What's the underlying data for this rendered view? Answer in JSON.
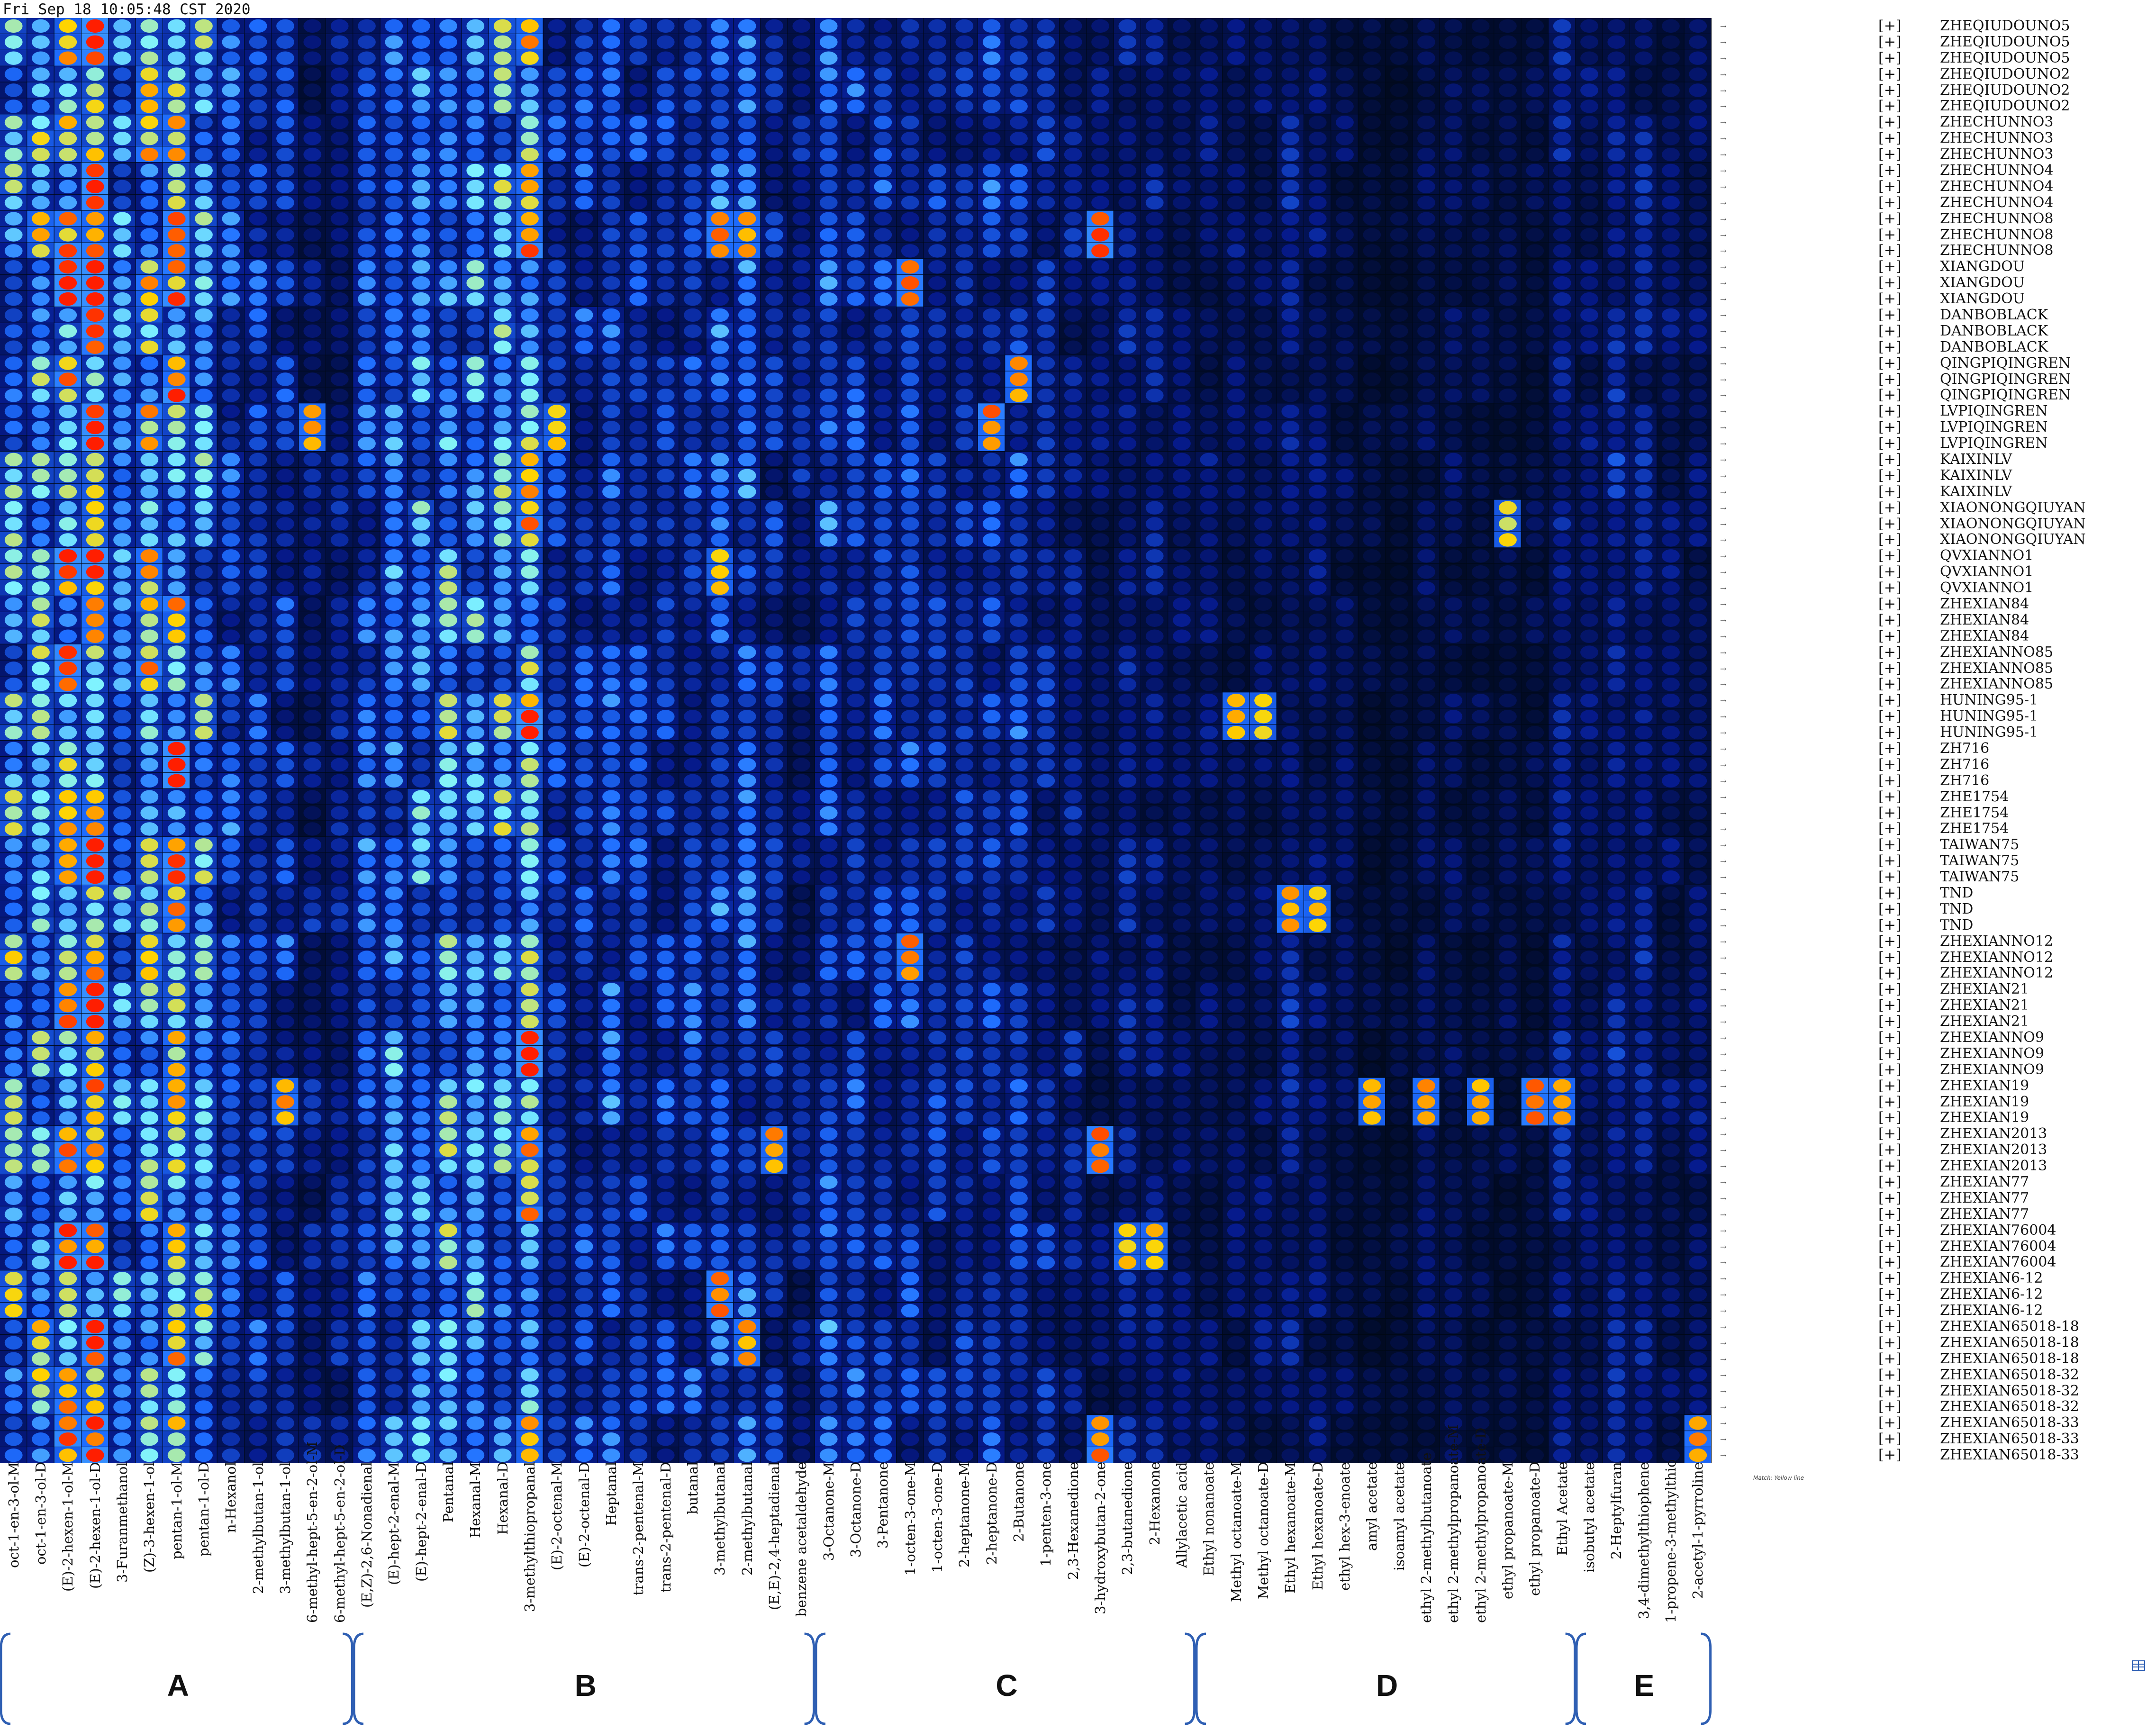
{
  "timestamp": "Fri Sep 18 10:05:48 CST 2020",
  "footnote": "Match: Yellow line",
  "colors": {
    "background": "#000814",
    "low": "#061a8c",
    "mid": "#1e6dff",
    "high": "#7ff3ff",
    "peak": "#ffd400",
    "max": "#ff1e00",
    "brace": "#2f5fb3"
  },
  "chart_data": {
    "type": "heatmap",
    "title": "",
    "xlabel": "",
    "ylabel": "",
    "x": [
      "oct-1-en-3-ol-M",
      "oct-1-en-3-ol-D",
      "(E)-2-hexen-1-ol-M",
      "(E)-2-hexen-1-ol-D",
      "3-Furanmethanol",
      "(Z)-3-hexen-1-ol",
      "pentan-1-ol-M",
      "pentan-1-ol-D",
      "n-Hexanol",
      "2-methylbutan-1-ol",
      "3-methylbutan-1-ol",
      "6-methyl-hept-5-en-2-ol-M",
      "6-methyl-hept-5-en-2-ol-D",
      "(E,Z)-2,6-Nonadienal",
      "(E)-hept-2-enal-M",
      "(E)-hept-2-enal-D",
      "Pentanal",
      "Hexanal-M",
      "Hexanal-D",
      "3-methylthiopropanal",
      "(E)-2-octenal-M",
      "(E)-2-octenal-D",
      "Heptanal",
      "trans-2-pentenal-M",
      "trans-2-pentenal-D",
      "butanal",
      "3-methylbutanal",
      "2-methylbutanal",
      "(E,E)-2,4-heptadienal",
      "benzene acetaldehyde",
      "3-Octanone-M",
      "3-Octanone-D",
      "3-Pentanone",
      "1-octen-3-one-M",
      "1-octen-3-one-D",
      "2-heptanone-M",
      "2-heptanone-D",
      "2-Butanone",
      "1-penten-3-one",
      "2,3-Hexanedione",
      "3-hydroxybutan-2-one",
      "2,3-butanedione",
      "2-Hexanone",
      "Allylacetic acid",
      "Ethyl nonanoate",
      "Methyl octanoate-M",
      "Methyl octanoate-D",
      "Ethyl hexanoate-M",
      "Ethyl hexanoate-D",
      "ethyl hex-3-enoate",
      "amyl acetate",
      "isoamyl acetate",
      "ethyl 2-methylbutanoate",
      "ethyl 2-methylpropanoate-M",
      "ethyl 2-methylpropanoate-D",
      "ethyl propanoate-M",
      "ethyl propanoate-D",
      "Ethyl Acetate",
      "isobutyl acetate",
      "2-Heptylfuran",
      "3,4-dimethylthiophene",
      "1-propene-3-methylthio",
      "2-acetyl-1-pyrroline"
    ],
    "sample_groups": [
      {
        "name": "ZHEQIUDOUNO5",
        "replicates": 3
      },
      {
        "name": "ZHEQIUDOUNO2",
        "replicates": 3
      },
      {
        "name": "ZHECHUNNO3",
        "replicates": 3
      },
      {
        "name": "ZHECHUNNO4",
        "replicates": 3
      },
      {
        "name": "ZHECHUNNO8",
        "replicates": 3
      },
      {
        "name": "XIANGDOU",
        "replicates": 3
      },
      {
        "name": "DANBOBLACK",
        "replicates": 3
      },
      {
        "name": "QINGPIQINGREN",
        "replicates": 3
      },
      {
        "name": "LVPIQINGREN",
        "replicates": 3
      },
      {
        "name": "KAIXINLV",
        "replicates": 3
      },
      {
        "name": "XIAONONGQIUYAN",
        "replicates": 3
      },
      {
        "name": "QVXIANNO1",
        "replicates": 3
      },
      {
        "name": "ZHEXIAN84",
        "replicates": 3
      },
      {
        "name": "ZHEXIANNO85",
        "replicates": 3
      },
      {
        "name": "HUNING95-1",
        "replicates": 3
      },
      {
        "name": "ZH716",
        "replicates": 3
      },
      {
        "name": "ZHE1754",
        "replicates": 3
      },
      {
        "name": "TAIWAN75",
        "replicates": 3
      },
      {
        "name": "TND",
        "replicates": 3
      },
      {
        "name": "ZHEXIANNO12",
        "replicates": 3
      },
      {
        "name": "ZHEXIAN21",
        "replicates": 3
      },
      {
        "name": "ZHEXIANNO9",
        "replicates": 3
      },
      {
        "name": "ZHEXIAN19",
        "replicates": 3
      },
      {
        "name": "ZHEXIAN2013",
        "replicates": 3
      },
      {
        "name": "ZHEXIAN77",
        "replicates": 3
      },
      {
        "name": "ZHEXIAN76004",
        "replicates": 3
      },
      {
        "name": "ZHEXIAN6-12",
        "replicates": 3
      },
      {
        "name": "ZHEXIAN65018-18",
        "replicates": 3
      },
      {
        "name": "ZHEXIAN65018-32",
        "replicates": 3
      },
      {
        "name": "ZHEXIAN65018-33",
        "replicates": 3
      }
    ],
    "row_prefix": "[+]",
    "column_groups": [
      {
        "label": "A",
        "from": 0,
        "to": 12
      },
      {
        "label": "B",
        "from": 13,
        "to": 29
      },
      {
        "label": "C",
        "from": 30,
        "to": 43
      },
      {
        "label": "D",
        "from": 44,
        "to": 57
      },
      {
        "label": "E",
        "from": 58,
        "to": 62
      }
    ],
    "color_scale": [
      "#000814",
      "#061a8c",
      "#1e6dff",
      "#7ff3ff",
      "#ffd400",
      "#ff1e00"
    ],
    "intensity_profile": {
      "column_base": [
        0.55,
        0.6,
        0.72,
        0.78,
        0.45,
        0.6,
        0.7,
        0.5,
        0.35,
        0.3,
        0.3,
        0.2,
        0.2,
        0.35,
        0.4,
        0.45,
        0.5,
        0.45,
        0.5,
        0.7,
        0.3,
        0.3,
        0.35,
        0.3,
        0.3,
        0.3,
        0.35,
        0.35,
        0.25,
        0.2,
        0.35,
        0.3,
        0.3,
        0.3,
        0.25,
        0.25,
        0.3,
        0.3,
        0.25,
        0.2,
        0.15,
        0.2,
        0.2,
        0.15,
        0.15,
        0.15,
        0.15,
        0.2,
        0.15,
        0.12,
        0.08,
        0.08,
        0.12,
        0.12,
        0.1,
        0.1,
        0.1,
        0.2,
        0.15,
        0.25,
        0.2,
        0.15,
        0.15
      ],
      "hotspots": [
        {
          "col": 40,
          "group": 4,
          "value": 1.0
        },
        {
          "col": 26,
          "group": 4,
          "value": 0.95
        },
        {
          "col": 27,
          "group": 4,
          "value": 0.9
        },
        {
          "col": 33,
          "group": 5,
          "value": 0.95
        },
        {
          "col": 37,
          "group": 7,
          "value": 0.9
        },
        {
          "col": 36,
          "group": 8,
          "value": 0.95
        },
        {
          "col": 11,
          "group": 8,
          "value": 0.9
        },
        {
          "col": 20,
          "group": 8,
          "value": 0.85
        },
        {
          "col": 55,
          "group": 10,
          "value": 0.8
        },
        {
          "col": 26,
          "group": 11,
          "value": 0.85
        },
        {
          "col": 45,
          "group": 14,
          "value": 0.9
        },
        {
          "col": 46,
          "group": 14,
          "value": 0.85
        },
        {
          "col": 47,
          "group": 18,
          "value": 0.9
        },
        {
          "col": 48,
          "group": 18,
          "value": 0.85
        },
        {
          "col": 33,
          "group": 19,
          "value": 0.95
        },
        {
          "col": 10,
          "group": 22,
          "value": 0.9
        },
        {
          "col": 50,
          "group": 22,
          "value": 0.9
        },
        {
          "col": 52,
          "group": 22,
          "value": 0.9
        },
        {
          "col": 54,
          "group": 22,
          "value": 0.9
        },
        {
          "col": 56,
          "group": 22,
          "value": 0.95
        },
        {
          "col": 57,
          "group": 22,
          "value": 0.9
        },
        {
          "col": 40,
          "group": 23,
          "value": 0.95
        },
        {
          "col": 28,
          "group": 23,
          "value": 0.9
        },
        {
          "col": 41,
          "group": 25,
          "value": 0.85
        },
        {
          "col": 42,
          "group": 25,
          "value": 0.85
        },
        {
          "col": 26,
          "group": 26,
          "value": 0.95
        },
        {
          "col": 27,
          "group": 27,
          "value": 0.9
        },
        {
          "col": 40,
          "group": 29,
          "value": 0.95
        },
        {
          "col": 19,
          "group": 29,
          "value": 0.9
        },
        {
          "col": 62,
          "group": 29,
          "value": 0.9
        }
      ]
    }
  }
}
